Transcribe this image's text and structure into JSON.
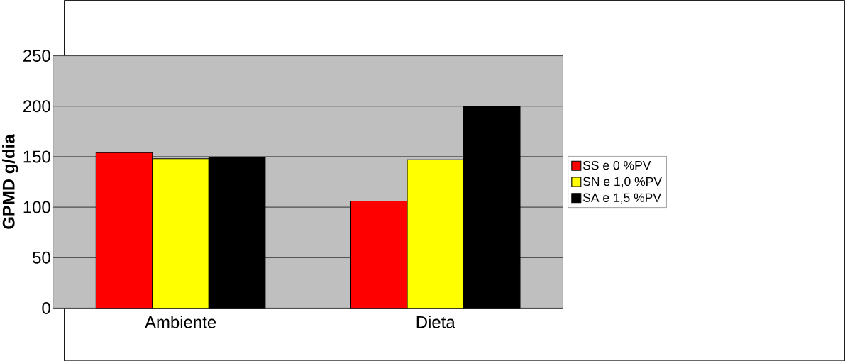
{
  "chart_data": {
    "type": "bar",
    "ylabel": "**GPMD g/dia**",
    "categories": [
      "Ambiente",
      "Dieta"
    ],
    "series": [
      {
        "name": "SS e 0 %PV",
        "color": "#ff0000",
        "values": [
          154,
          106
        ]
      },
      {
        "name": "SN e 1,0 %PV",
        "color": "#ffff00",
        "values": [
          148,
          147
        ]
      },
      {
        "name": "SA e 1,5 %PV",
        "color": "#000000",
        "values": [
          149,
          200
        ]
      }
    ],
    "ylim": [
      0,
      250
    ],
    "yticks": [
      0,
      50,
      100,
      150,
      200,
      250
    ],
    "grid": "y",
    "legend": "right"
  }
}
